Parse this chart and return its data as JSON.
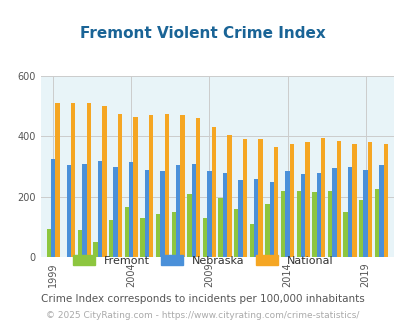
{
  "title": "Fremont Violent Crime Index",
  "title_color": "#1a6496",
  "subtitle": "Crime Index corresponds to incidents per 100,000 inhabitants",
  "subtitle_color": "#555555",
  "footer": "© 2025 CityRating.com - https://www.cityrating.com/crime-statistics/",
  "footer_color": "#aaaaaa",
  "background_color": "#e8f4f8",
  "fig_background": "#ffffff",
  "years": [
    1999,
    2000,
    2001,
    2002,
    2003,
    2004,
    2005,
    2006,
    2007,
    2008,
    2009,
    2010,
    2011,
    2012,
    2013,
    2014,
    2015,
    2016,
    2017,
    2018,
    2019,
    2020
  ],
  "fremont": [
    95,
    0,
    90,
    50,
    125,
    165,
    130,
    145,
    150,
    210,
    130,
    195,
    160,
    110,
    175,
    220,
    220,
    215,
    220,
    150,
    190,
    225
  ],
  "nebraska": [
    325,
    305,
    310,
    320,
    300,
    315,
    290,
    285,
    305,
    310,
    285,
    280,
    255,
    260,
    250,
    285,
    275,
    280,
    295,
    300,
    290,
    305
  ],
  "national": [
    510,
    510,
    510,
    500,
    475,
    465,
    470,
    475,
    470,
    460,
    430,
    405,
    390,
    390,
    365,
    375,
    380,
    395,
    385,
    375,
    380,
    375
  ],
  "fremont_color": "#8dc63f",
  "nebraska_color": "#4a90d9",
  "national_color": "#f5a623",
  "ylim": [
    0,
    600
  ],
  "yticks": [
    0,
    200,
    400,
    600
  ],
  "xlabel_years": [
    1999,
    2004,
    2009,
    2014,
    2019
  ],
  "grid_color": "#cccccc",
  "bar_width": 0.28
}
